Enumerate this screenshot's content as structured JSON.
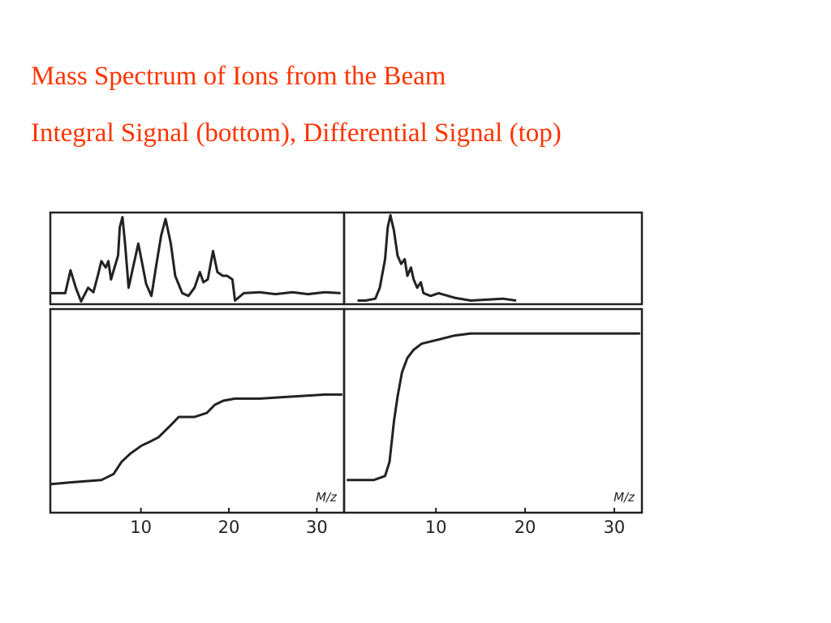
{
  "slide": {
    "title": "Mass Spectrum of Ions from the Beam",
    "subtitle": "Integral Signal (bottom), Differential Signal (top)"
  },
  "chart_data": [
    {
      "type": "line",
      "xlim": [
        -0.3,
        33.1
      ],
      "ylim": [
        0,
        100
      ],
      "x": [
        -0.3,
        1.4,
        2.0,
        2.6,
        3.2,
        4.0,
        4.6,
        5.1,
        5.5,
        6.0,
        6.3,
        6.6,
        7.0,
        7.4,
        7.6,
        7.9,
        8.2,
        8.6,
        9.1,
        9.7,
        10.1,
        10.6,
        11.2,
        11.7,
        12.3,
        12.8,
        13.4,
        13.9,
        14.7,
        15.4,
        16.1,
        16.7,
        17.1,
        17.6,
        18.2,
        18.7,
        19.3,
        19.8,
        20.4,
        20.7,
        21.7,
        23.5,
        25.3,
        27.2,
        29.0,
        30.9,
        32.7
      ],
      "values": [
        12,
        12,
        37,
        18,
        3,
        18,
        13,
        31,
        47,
        40,
        47,
        27,
        40,
        53,
        84,
        95,
        66,
        18,
        40,
        66,
        47,
        22,
        9,
        40,
        75,
        93,
        66,
        31,
        12,
        9,
        18,
        35,
        24,
        27,
        58,
        35,
        31,
        31,
        27,
        4,
        12,
        13,
        11,
        13,
        11,
        13,
        12
      ]
    },
    {
      "type": "line",
      "xlim": [
        -0.3,
        33.1
      ],
      "ylim": [
        0,
        100
      ],
      "xticks": [
        10,
        20,
        30
      ],
      "x_label": "M/z",
      "x": [
        -0.3,
        2.3,
        5.5,
        6.9,
        7.8,
        8.8,
        10.1,
        11.1,
        12.0,
        13.4,
        14.3,
        16.1,
        17.5,
        18.4,
        19.4,
        20.7,
        23.5,
        27.2,
        30.9,
        32.9
      ],
      "values": [
        14,
        15,
        16,
        19,
        25,
        29,
        33,
        35,
        37,
        43,
        47,
        47,
        49,
        53,
        55,
        56,
        56,
        57,
        58,
        58
      ]
    },
    {
      "type": "line",
      "xlim": [
        -0.3,
        33.1
      ],
      "ylim": [
        0,
        100
      ],
      "x": [
        1.2,
        2.1,
        3.2,
        3.7,
        4.3,
        4.6,
        4.9,
        5.3,
        5.7,
        6.1,
        6.5,
        6.8,
        7.2,
        7.5,
        7.9,
        8.3,
        8.6,
        9.4,
        10.3,
        12.1,
        13.9,
        15.7,
        17.5,
        19.0
      ],
      "values": [
        4,
        4,
        6,
        18,
        49,
        84,
        97,
        80,
        53,
        44,
        49,
        31,
        40,
        27,
        18,
        24,
        12,
        9,
        12,
        7,
        4,
        5,
        6,
        4
      ]
    },
    {
      "type": "line",
      "xlim": [
        -0.3,
        33.1
      ],
      "ylim": [
        0,
        100
      ],
      "xticks": [
        10,
        20,
        30
      ],
      "x_label": "M/z",
      "x": [
        0,
        3.0,
        4.3,
        4.8,
        5.3,
        5.7,
        6.2,
        6.8,
        7.5,
        8.4,
        10.3,
        12.1,
        13.9,
        15.7,
        18.5,
        21.2,
        23.9,
        26.6,
        30.3,
        32.9
      ],
      "values": [
        16,
        16,
        18,
        25,
        45,
        57,
        69,
        76,
        80,
        83,
        85,
        87,
        88,
        88,
        88,
        88,
        88,
        88,
        88,
        88
      ]
    }
  ]
}
